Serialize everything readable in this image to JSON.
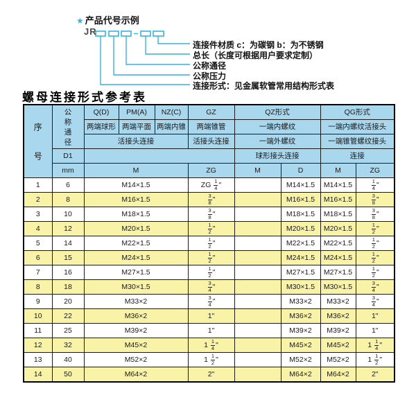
{
  "diagram": {
    "star": "★",
    "title": "产品代号示例",
    "code_prefix": "JR",
    "labels": [
      "连接件材质  c：为碳钢  b：为不锈钢",
      "总长（长度可根据用户要求定制）",
      "公称通径",
      "公称压力",
      "连接形式：见金属软管常用结构形式表"
    ]
  },
  "table": {
    "title": "螺母连接形式参考表",
    "header": {
      "seq": "序号",
      "dn": "公称通径",
      "d1": "D1",
      "unit": "mm",
      "col_groups": [
        "Q(D)",
        "PM(A)",
        "NZ(C)",
        "GZ",
        "QZ形式",
        "QG形式"
      ],
      "row2": [
        "两端球形",
        "两端平面",
        "两端内锥",
        "两端锥管",
        "一端内螺纹",
        "一端内螺纹活接头"
      ],
      "row3": [
        "活接头连接",
        "活接头连接",
        "一端外螺纹",
        "一端锥管螺纹接头"
      ],
      "row4": [
        "球形接头连接",
        "连接"
      ],
      "row5": [
        "M",
        "ZG",
        "M",
        "D",
        "M",
        "ZG"
      ]
    },
    "rows": [
      {
        "no": "1",
        "dn": "6",
        "m": "M14×1.5",
        "gz": "ZG 1/4\"",
        "qz_m": "",
        "qz_d": "M14×1.5",
        "qg_m": "M14×1.5",
        "qg_zg": "1/4\""
      },
      {
        "no": "2",
        "dn": "8",
        "m": "M16×1.5",
        "gz": "3/8\"",
        "qz_m": "",
        "qz_d": "M16×1.5",
        "qg_m": "M16×1.5",
        "qg_zg": "3/8\""
      },
      {
        "no": "3",
        "dn": "10",
        "m": "M18×1.5",
        "gz": "3/8\"",
        "qz_m": "",
        "qz_d": "M18×1.5",
        "qg_m": "M18×1.5",
        "qg_zg": "3/8\""
      },
      {
        "no": "4",
        "dn": "12",
        "m": "M20×1.5",
        "gz": "1/2\"",
        "qz_m": "",
        "qz_d": "M20×1.5",
        "qg_m": "M20×1.5",
        "qg_zg": "1/2\""
      },
      {
        "no": "5",
        "dn": "14",
        "m": "M22×1.5",
        "gz": "1/2\"",
        "qz_m": "",
        "qz_d": "M22×1.5",
        "qg_m": "M22×1.5",
        "qg_zg": "1/2\""
      },
      {
        "no": "6",
        "dn": "15",
        "m": "M24×1.5",
        "gz": "1/2\"",
        "qz_m": "",
        "qz_d": "M24×1.5",
        "qg_m": "M24×1.5",
        "qg_zg": "1/2\""
      },
      {
        "no": "7",
        "dn": "16",
        "m": "M27×1.5",
        "gz": "1/2\"",
        "qz_m": "",
        "qz_d": "M27×1.5",
        "qg_m": "M27×1.5",
        "qg_zg": "1/2\""
      },
      {
        "no": "8",
        "dn": "18",
        "m": "M30×1.5",
        "gz": "3/4\"",
        "qz_m": "",
        "qz_d": "M30×1.5",
        "qg_m": "M30×1.5",
        "qg_zg": "3/4\""
      },
      {
        "no": "9",
        "dn": "20",
        "m": "M33×2",
        "gz": "3/4\"",
        "qz_m": "",
        "qz_d": "M33×2",
        "qg_m": "M33×2",
        "qg_zg": "3/4\""
      },
      {
        "no": "10",
        "dn": "22",
        "m": "M36×2",
        "gz": "1\"",
        "qz_m": "",
        "qz_d": "M36×2",
        "qg_m": "M36×2",
        "qg_zg": "1\""
      },
      {
        "no": "11",
        "dn": "25",
        "m": "M39×2",
        "gz": "1\"",
        "qz_m": "",
        "qz_d": "M39×2",
        "qg_m": "M39×2",
        "qg_zg": "1\""
      },
      {
        "no": "12",
        "dn": "32",
        "m": "M45×2",
        "gz": "1 1/4\"",
        "qz_m": "",
        "qz_d": "M45×2",
        "qg_m": "M45×2",
        "qg_zg": "1 1/4\""
      },
      {
        "no": "13",
        "dn": "40",
        "m": "M52×2",
        "gz": "1 1/2\"",
        "qz_m": "",
        "qz_d": "M52×2",
        "qg_m": "M52×2",
        "qg_zg": "1 1/2\""
      },
      {
        "no": "14",
        "dn": "50",
        "m": "M64×2",
        "gz": "2\"",
        "qz_m": "",
        "qz_d": "M64×2",
        "qg_m": "M64×2",
        "qg_zg": "2\""
      }
    ]
  },
  "colors": {
    "header_blue": "#a9d7ee",
    "row_yellow": "#f8f3a6",
    "diagram_cyan": "#35b2e3",
    "border_dark": "#1a1a1a"
  }
}
